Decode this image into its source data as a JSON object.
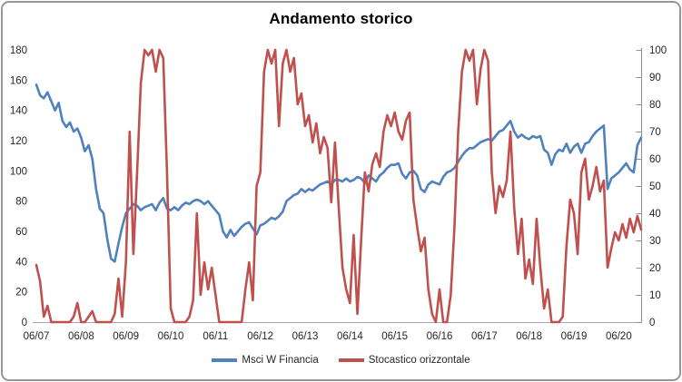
{
  "chart": {
    "title": "Andamento storico",
    "colors": {
      "series_msci": "#4F81BD",
      "series_stocastico": "#C0504D",
      "axis_line": "#A6A6A6",
      "axis_text": "#262626",
      "border": "#969696",
      "background": "#FFFFFF"
    }
  },
  "chart_data": {
    "type": "line",
    "title": "Andamento storico",
    "x_start": "2007-06",
    "x_frequency": "monthly",
    "x_tick_labels": [
      "06/07",
      "06/08",
      "06/09",
      "06/10",
      "06/11",
      "06/12",
      "06/13",
      "06/14",
      "06/15",
      "06/16",
      "06/17",
      "06/18",
      "06/19",
      "06/20"
    ],
    "y_left": {
      "min": 0,
      "max": 180,
      "step": 20,
      "tick_labels": [
        "0",
        "20",
        "40",
        "60",
        "80",
        "100",
        "120",
        "140",
        "160",
        "180"
      ]
    },
    "y_right": {
      "min": 0,
      "max": 100,
      "step": 10,
      "tick_labels": [
        "0",
        "10",
        "20",
        "30",
        "40",
        "50",
        "60",
        "70",
        "80",
        "90",
        "100"
      ]
    },
    "grid": false,
    "legend_position": "bottom",
    "series": [
      {
        "name": "Msci W Financia",
        "axis": "left",
        "color": "#4F81BD",
        "values": [
          157,
          150,
          148,
          152,
          146,
          140,
          145,
          133,
          129,
          132,
          126,
          128,
          122,
          113,
          117,
          108,
          88,
          75,
          72,
          55,
          42,
          40,
          52,
          63,
          72,
          75,
          78,
          77,
          74,
          76,
          77,
          78,
          74,
          79,
          82,
          75,
          74,
          76,
          74,
          77,
          79,
          78,
          80,
          81,
          80,
          78,
          80,
          77,
          74,
          71,
          60,
          56,
          61,
          57,
          60,
          63,
          65,
          66,
          62,
          58,
          64,
          65,
          67,
          69,
          68,
          70,
          73,
          80,
          82,
          84,
          85,
          88,
          86,
          88,
          87,
          89,
          91,
          92,
          93,
          91,
          94,
          94,
          93,
          95,
          93,
          94,
          96,
          95,
          92,
          97,
          95,
          93,
          97,
          99,
          102,
          104,
          104,
          105,
          98,
          95,
          99,
          100,
          97,
          88,
          86,
          91,
          93,
          92,
          91,
          96,
          99,
          100,
          102,
          106,
          110,
          113,
          115,
          115,
          117,
          119,
          120,
          121,
          120,
          123,
          126,
          127,
          130,
          133,
          126,
          122,
          124,
          122,
          121,
          123,
          122,
          123,
          114,
          112,
          104,
          111,
          114,
          113,
          118,
          112,
          116,
          118,
          112,
          118,
          119,
          123,
          126,
          128,
          130,
          88,
          95,
          97,
          99,
          102,
          105,
          101,
          99,
          117,
          122
        ]
      },
      {
        "name": "Stocastico orizzontale",
        "axis": "right",
        "color": "#C0504D",
        "values": [
          21,
          15,
          2,
          6,
          0,
          0,
          0,
          0,
          0,
          0,
          2,
          7,
          0,
          0,
          2,
          4,
          0,
          0,
          0,
          0,
          0,
          3,
          16,
          2,
          22,
          70,
          25,
          55,
          88,
          100,
          98,
          100,
          92,
          100,
          97,
          55,
          5,
          0,
          0,
          0,
          0,
          2,
          8,
          40,
          10,
          22,
          12,
          20,
          10,
          0,
          0,
          0,
          0,
          0,
          0,
          0,
          12,
          22,
          8,
          50,
          55,
          92,
          100,
          95,
          100,
          72,
          95,
          100,
          92,
          97,
          80,
          84,
          72,
          76,
          66,
          73,
          62,
          68,
          64,
          44,
          66,
          42,
          20,
          12,
          7,
          32,
          3,
          30,
          55,
          48,
          58,
          62,
          57,
          70,
          76,
          72,
          77,
          70,
          67,
          74,
          77,
          45,
          35,
          26,
          31,
          12,
          3,
          0,
          12,
          0,
          0,
          10,
          35,
          70,
          92,
          100,
          96,
          100,
          80,
          93,
          100,
          96,
          55,
          40,
          50,
          46,
          52,
          70,
          42,
          25,
          38,
          16,
          23,
          14,
          38,
          20,
          5,
          12,
          0,
          0,
          0,
          2,
          28,
          45,
          40,
          25,
          55,
          60,
          45,
          50,
          57,
          48,
          52,
          20,
          27,
          33,
          30,
          36,
          31,
          38,
          33,
          39,
          34
        ]
      }
    ]
  }
}
